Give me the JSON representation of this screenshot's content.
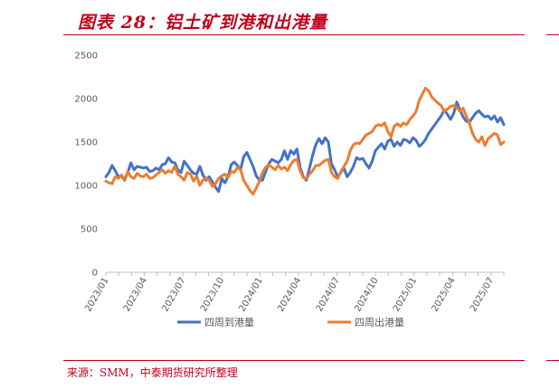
{
  "figure": {
    "title": "图表 28：铝土矿到港和出港量",
    "source": "来源：SMM，中泰期货研究所整理"
  },
  "colors": {
    "accent": "#c0001a",
    "arrivals": "#4472c4",
    "departures": "#ed7d31",
    "axis": "#bfbfbf"
  },
  "chart_data": {
    "type": "line",
    "title": "",
    "xlabel": "",
    "ylabel": "",
    "ylim": [
      0,
      2500
    ],
    "yticks": [
      0,
      500,
      1000,
      1500,
      2000,
      2500
    ],
    "xtick_labels": [
      "2023/01",
      "2023/04",
      "2023/07",
      "2023/10",
      "2024/01",
      "2024/04",
      "2024/07",
      "2024/10",
      "2025/01",
      "2025/04",
      "2025/07"
    ],
    "grid": false,
    "legend_position": "bottom",
    "x_start": "2023/01",
    "x_end": "2025/08",
    "series": [
      {
        "name": "四周到港量",
        "values": [
          1100,
          1150,
          1230,
          1170,
          1100,
          1110,
          1060,
          1150,
          1260,
          1180,
          1220,
          1210,
          1200,
          1210,
          1160,
          1170,
          1200,
          1180,
          1240,
          1250,
          1320,
          1270,
          1260,
          1180,
          1150,
          1280,
          1230,
          1180,
          1140,
          1130,
          1220,
          1120,
          1060,
          1100,
          1040,
          980,
          930,
          1080,
          1030,
          1100,
          1240,
          1270,
          1230,
          1180,
          1330,
          1380,
          1300,
          1220,
          1110,
          1060,
          1060,
          1160,
          1250,
          1300,
          1280,
          1260,
          1300,
          1400,
          1300,
          1400,
          1360,
          1420,
          1210,
          1100,
          1060,
          1200,
          1350,
          1470,
          1540,
          1480,
          1550,
          1500,
          1250,
          1180,
          1100,
          1150,
          1200,
          1100,
          1150,
          1220,
          1320,
          1300,
          1310,
          1250,
          1200,
          1280,
          1400,
          1440,
          1480,
          1420,
          1510,
          1530,
          1450,
          1500,
          1460,
          1530,
          1520,
          1490,
          1550,
          1520,
          1450,
          1480,
          1530,
          1600,
          1650,
          1700,
          1750,
          1800,
          1870,
          1820,
          1760,
          1830,
          1960,
          1870,
          1790,
          1740,
          1730,
          1780,
          1830,
          1860,
          1820,
          1790,
          1800,
          1760,
          1800,
          1730,
          1780,
          1700
        ],
        "color": "#4472c4"
      },
      {
        "name": "四周出港量",
        "values": [
          1050,
          1030,
          1020,
          1100,
          1080,
          1120,
          1070,
          1160,
          1100,
          1080,
          1140,
          1110,
          1100,
          1130,
          1080,
          1090,
          1120,
          1150,
          1180,
          1140,
          1170,
          1150,
          1220,
          1130,
          1100,
          1060,
          1150,
          1130,
          1050,
          1110,
          1000,
          1060,
          1090,
          1060,
          990,
          1020,
          1080,
          1110,
          1130,
          1090,
          1160,
          1150,
          1210,
          1180,
          1060,
          1000,
          940,
          900,
          970,
          1050,
          1150,
          1210,
          1240,
          1210,
          1180,
          1230,
          1190,
          1210,
          1170,
          1240,
          1290,
          1300,
          1170,
          1090,
          1080,
          1130,
          1170,
          1230,
          1230,
          1260,
          1290,
          1300,
          1150,
          1100,
          1080,
          1160,
          1220,
          1280,
          1400,
          1470,
          1490,
          1480,
          1530,
          1580,
          1600,
          1620,
          1680,
          1700,
          1690,
          1720,
          1620,
          1560,
          1680,
          1710,
          1680,
          1720,
          1700,
          1760,
          1800,
          1850,
          1980,
          2050,
          2120,
          2090,
          2020,
          1980,
          1950,
          1920,
          1850,
          1880,
          1910,
          1920,
          1900,
          1850,
          1890,
          1800,
          1720,
          1600,
          1530,
          1500,
          1560,
          1460,
          1540,
          1570,
          1600,
          1580,
          1470,
          1500
        ],
        "color": "#ed7d31"
      }
    ]
  }
}
